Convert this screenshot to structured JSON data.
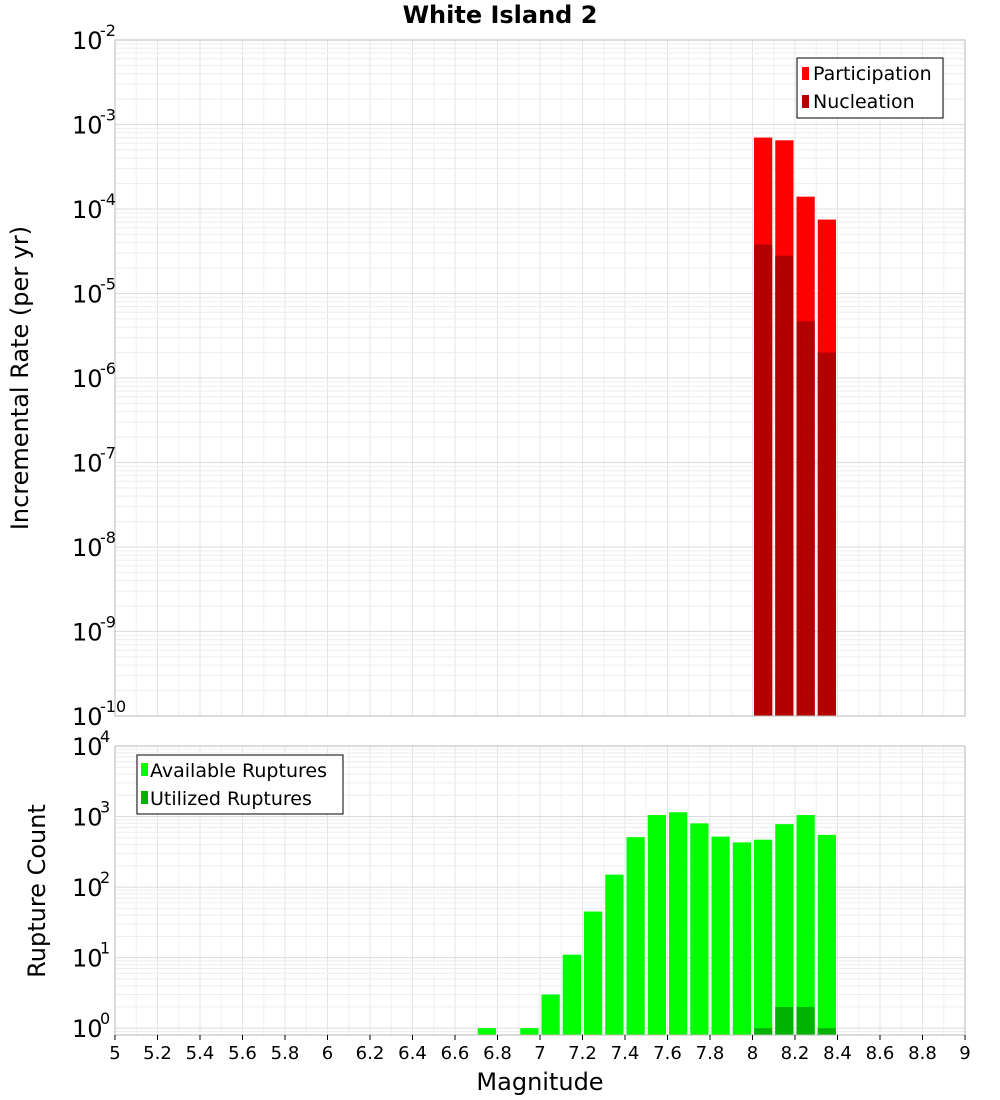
{
  "chart_data": [
    {
      "type": "bar",
      "title": "White Island 2",
      "xlabel": "",
      "ylabel": "Incremental Rate (per yr)",
      "yscale": "log",
      "ylim": [
        1e-10,
        0.01
      ],
      "xlim": [
        5,
        9
      ],
      "grid": true,
      "legend_position": "top-right",
      "ytick_base": "10",
      "yticks": [
        {
          "exp": "-10",
          "value": 1e-10
        },
        {
          "exp": "-9",
          "value": 1e-09
        },
        {
          "exp": "-8",
          "value": 1e-08
        },
        {
          "exp": "-7",
          "value": 1e-07
        },
        {
          "exp": "-6",
          "value": 1e-06
        },
        {
          "exp": "-5",
          "value": 1e-05
        },
        {
          "exp": "-4",
          "value": 0.0001
        },
        {
          "exp": "-3",
          "value": 0.001
        },
        {
          "exp": "-2",
          "value": 0.01
        }
      ],
      "bin_width": 0.1,
      "x": [
        8.05,
        8.15,
        8.25,
        8.35
      ],
      "series": [
        {
          "name": "Participation",
          "color": "#ff0000",
          "values": [
            0.0007,
            0.00065,
            0.00014,
            7.5e-05
          ]
        },
        {
          "name": "Nucleation",
          "color": "#b30000",
          "values": [
            3.8e-05,
            2.8e-05,
            4.7e-06,
            2e-06
          ]
        }
      ]
    },
    {
      "type": "bar",
      "title": "",
      "xlabel": "Magnitude",
      "ylabel": "Rupture Count",
      "yscale": "log",
      "ylim": [
        0.8,
        10000
      ],
      "xlim": [
        5,
        9
      ],
      "grid": true,
      "legend_position": "top-left",
      "ytick_base": "10",
      "yticks": [
        {
          "exp": "0",
          "value": 1
        },
        {
          "exp": "1",
          "value": 10
        },
        {
          "exp": "2",
          "value": 100
        },
        {
          "exp": "3",
          "value": 1000
        },
        {
          "exp": "4",
          "value": 10000
        }
      ],
      "xticks": [
        "5",
        "5.2",
        "5.4",
        "5.6",
        "5.8",
        "6",
        "6.2",
        "6.4",
        "6.6",
        "6.8",
        "7",
        "7.2",
        "7.4",
        "7.6",
        "7.8",
        "8",
        "8.2",
        "8.4",
        "8.6",
        "8.8",
        "9"
      ],
      "bin_width": 0.1,
      "x": [
        6.75,
        6.95,
        7.05,
        7.15,
        7.25,
        7.35,
        7.45,
        7.55,
        7.65,
        7.75,
        7.85,
        7.95,
        8.05,
        8.15,
        8.25,
        8.35
      ],
      "series": [
        {
          "name": "Available Ruptures",
          "color": "#00ff00",
          "values": [
            1,
            1,
            3,
            11,
            45,
            150,
            510,
            1050,
            1150,
            800,
            520,
            430,
            470,
            780,
            1050,
            550
          ]
        },
        {
          "name": "Utilized Ruptures",
          "color": "#00b300",
          "values": [
            0,
            0,
            0,
            0,
            0,
            0,
            0,
            0,
            0,
            0,
            0,
            0,
            1,
            2,
            2,
            1
          ]
        }
      ]
    }
  ]
}
